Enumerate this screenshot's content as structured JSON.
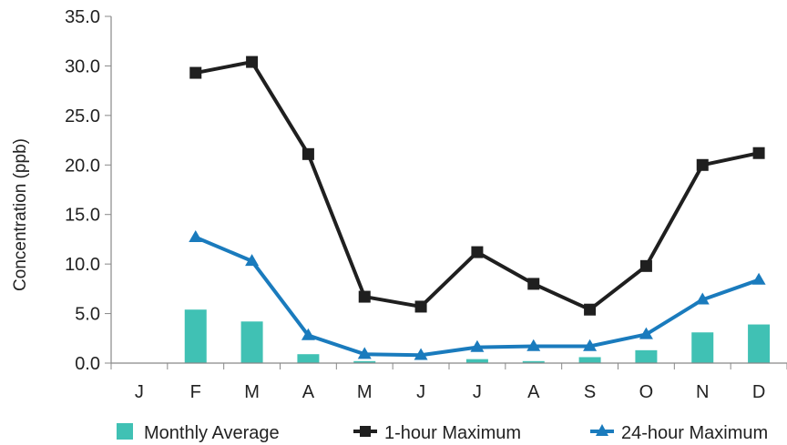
{
  "chart_data": {
    "type": "bar+line",
    "categories": [
      "J",
      "F",
      "M",
      "A",
      "M",
      "J",
      "J",
      "A",
      "S",
      "O",
      "N",
      "D"
    ],
    "ylabel": "Concentration (ppb)",
    "ylim": [
      0,
      35
    ],
    "yticks": [
      "0.0",
      "5.0",
      "10.0",
      "15.0",
      "20.0",
      "25.0",
      "30.0",
      "35.0"
    ],
    "grid": false,
    "legend_position": "bottom",
    "series": [
      {
        "name": "Monthly Average",
        "kind": "bar",
        "color": "#40c1b4",
        "values": [
          null,
          5.4,
          4.2,
          0.9,
          0.2,
          0.0,
          0.4,
          0.2,
          0.6,
          1.3,
          3.1,
          3.9
        ]
      },
      {
        "name": "1-hour Maximum",
        "kind": "line",
        "marker": "square",
        "color": "#1f1f1f",
        "values": [
          null,
          29.3,
          30.4,
          21.1,
          6.7,
          5.7,
          11.2,
          8.0,
          5.4,
          9.8,
          20.0,
          21.2
        ]
      },
      {
        "name": "24-hour Maximum",
        "kind": "line",
        "marker": "triangle",
        "color": "#1a7bbd",
        "values": [
          null,
          12.7,
          10.3,
          2.8,
          0.9,
          0.8,
          1.6,
          1.7,
          1.7,
          2.9,
          6.4,
          8.4
        ]
      }
    ]
  }
}
